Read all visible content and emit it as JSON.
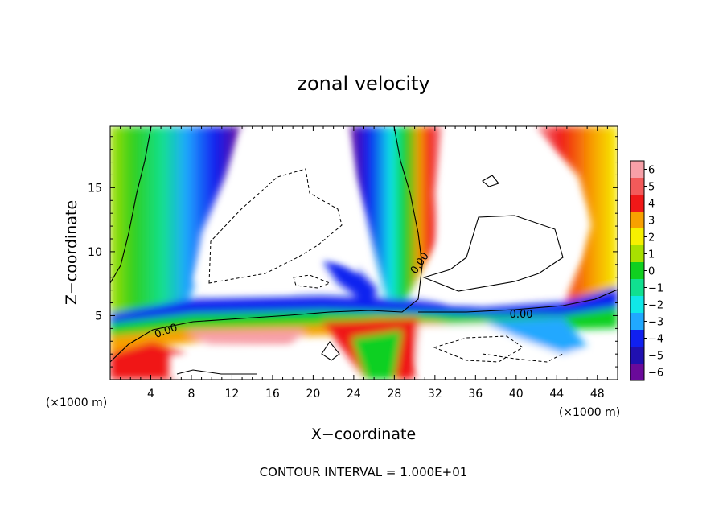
{
  "chart_data": {
    "type": "heatmap",
    "title": "zonal velocity",
    "xlabel": "X−coordinate",
    "ylabel": "Z−coordinate",
    "x_unit_label": "(×1000 m)",
    "y_unit_label": "(×1000 m)",
    "xlim": [
      0,
      50
    ],
    "ylim": [
      0,
      19.8
    ],
    "x_ticks": [
      4,
      8,
      12,
      16,
      20,
      24,
      28,
      32,
      36,
      40,
      44,
      48
    ],
    "y_ticks": [
      5,
      10,
      15
    ],
    "colorbar": {
      "levels": [
        6,
        5,
        4,
        3,
        2,
        1,
        0,
        -1,
        -2,
        -3,
        -4,
        -5,
        -6
      ],
      "labels": [
        "6",
        "5",
        "4",
        "3",
        "2",
        "1",
        "0",
        "−1",
        "−2",
        "−3",
        "−4",
        "−5",
        "−6"
      ],
      "colors": [
        "#f7a0a8",
        "#f35a5a",
        "#f01818",
        "#f8a000",
        "#f6f000",
        "#a8e000",
        "#10d020",
        "#10e090",
        "#10e8e8",
        "#20a8ff",
        "#1020f0",
        "#2010b0",
        "#6a0a9a"
      ]
    },
    "contour_labels": [
      "0.00",
      "0.00",
      "0.00"
    ],
    "annotation": "CONTOUR INTERVAL = 1.000E+01",
    "grid": false
  }
}
